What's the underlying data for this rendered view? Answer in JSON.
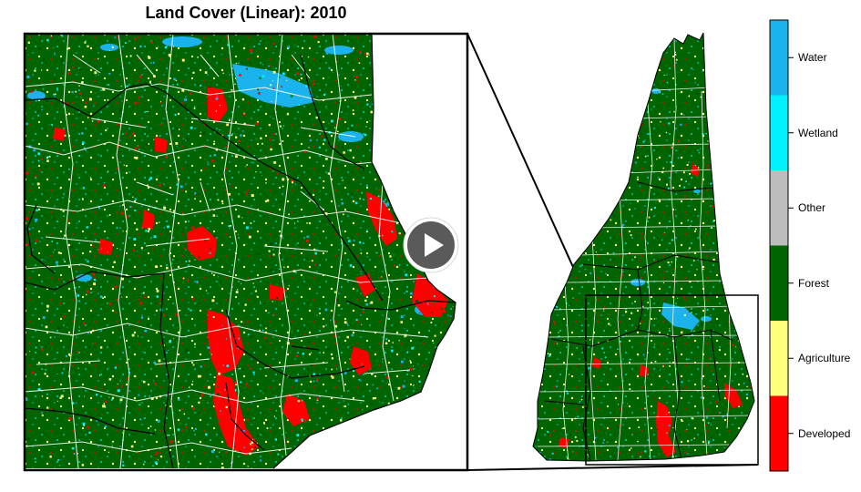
{
  "title": "Land Cover (Linear): 2010",
  "map": {
    "region": "New Hampshire",
    "boundary_color": "#ffffff",
    "county_line_color": "#000000",
    "inset_box_color": "#000000"
  },
  "legend": {
    "items": [
      {
        "label": "Water",
        "color": "#1ab3ee"
      },
      {
        "label": "Wetland",
        "color": "#00f0ff"
      },
      {
        "label": "Other",
        "color": "#bdbdbd"
      },
      {
        "label": "Forest",
        "color": "#006400"
      },
      {
        "label": "Agriculture",
        "color": "#ffff80"
      },
      {
        "label": "Developed",
        "color": "#ff0000"
      }
    ]
  },
  "player": {
    "icon": "play-icon",
    "button_color": "#5a5a5a"
  }
}
